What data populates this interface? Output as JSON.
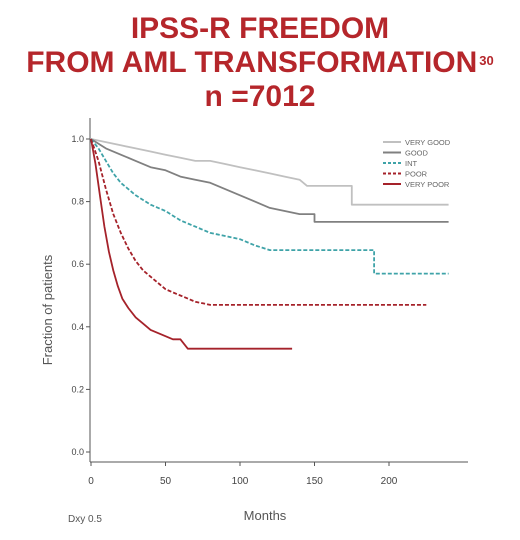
{
  "title": {
    "line1": "IPSS-R FREEDOM",
    "line2": "FROM AML TRANSFORMATION",
    "line2_superscript": "30",
    "line3": "n =7012"
  },
  "footnote": "Dxy 0.5",
  "chart_data": {
    "type": "line",
    "title": "IPSS-R FREEDOM FROM AML TRANSFORMATION",
    "xlabel": "Months",
    "ylabel": "Fraction of patients",
    "xlim": [
      0,
      250
    ],
    "ylim": [
      0,
      1.05
    ],
    "xticks": [
      0,
      50,
      100,
      150,
      200
    ],
    "yticks": [
      0.0,
      0.2,
      0.4,
      0.6,
      0.8,
      1.0
    ],
    "ytick_labels": [
      "0.0",
      "0.2",
      "0.4",
      "0.6",
      "0.8",
      "1.0"
    ],
    "grid": false,
    "legend_position": "top-right",
    "series": [
      {
        "name": "VERY GOOD",
        "color": "#c0c0c0",
        "dash": "solid",
        "points": [
          [
            0,
            1.0
          ],
          [
            10,
            0.99
          ],
          [
            20,
            0.98
          ],
          [
            30,
            0.97
          ],
          [
            40,
            0.96
          ],
          [
            50,
            0.95
          ],
          [
            60,
            0.94
          ],
          [
            70,
            0.93
          ],
          [
            80,
            0.93
          ],
          [
            90,
            0.92
          ],
          [
            100,
            0.91
          ],
          [
            110,
            0.9
          ],
          [
            120,
            0.89
          ],
          [
            130,
            0.88
          ],
          [
            140,
            0.87
          ],
          [
            145,
            0.85
          ],
          [
            175,
            0.85
          ],
          [
            175,
            0.79
          ],
          [
            240,
            0.79
          ]
        ]
      },
      {
        "name": "GOOD",
        "color": "#808080",
        "dash": "solid",
        "points": [
          [
            0,
            1.0
          ],
          [
            10,
            0.97
          ],
          [
            20,
            0.95
          ],
          [
            30,
            0.93
          ],
          [
            40,
            0.91
          ],
          [
            50,
            0.9
          ],
          [
            60,
            0.88
          ],
          [
            70,
            0.87
          ],
          [
            80,
            0.86
          ],
          [
            90,
            0.84
          ],
          [
            100,
            0.82
          ],
          [
            110,
            0.8
          ],
          [
            120,
            0.78
          ],
          [
            130,
            0.77
          ],
          [
            140,
            0.76
          ],
          [
            150,
            0.76
          ],
          [
            150,
            0.735
          ],
          [
            240,
            0.735
          ]
        ]
      },
      {
        "name": "INT",
        "color": "#3fa3a8",
        "dash": "dashed",
        "points": [
          [
            0,
            1.0
          ],
          [
            5,
            0.97
          ],
          [
            10,
            0.93
          ],
          [
            15,
            0.89
          ],
          [
            20,
            0.86
          ],
          [
            25,
            0.84
          ],
          [
            30,
            0.82
          ],
          [
            40,
            0.79
          ],
          [
            50,
            0.77
          ],
          [
            60,
            0.74
          ],
          [
            70,
            0.72
          ],
          [
            80,
            0.7
          ],
          [
            90,
            0.69
          ],
          [
            100,
            0.68
          ],
          [
            110,
            0.66
          ],
          [
            120,
            0.645
          ],
          [
            190,
            0.645
          ],
          [
            190,
            0.57
          ],
          [
            240,
            0.57
          ]
        ]
      },
      {
        "name": "POOR",
        "color": "#a5222a",
        "dash": "dashed",
        "points": [
          [
            0,
            1.0
          ],
          [
            5,
            0.93
          ],
          [
            10,
            0.84
          ],
          [
            15,
            0.76
          ],
          [
            20,
            0.7
          ],
          [
            25,
            0.65
          ],
          [
            30,
            0.61
          ],
          [
            35,
            0.58
          ],
          [
            40,
            0.56
          ],
          [
            45,
            0.54
          ],
          [
            50,
            0.52
          ],
          [
            55,
            0.51
          ],
          [
            60,
            0.5
          ],
          [
            65,
            0.49
          ],
          [
            70,
            0.48
          ],
          [
            75,
            0.475
          ],
          [
            80,
            0.47
          ],
          [
            225,
            0.47
          ]
        ]
      },
      {
        "name": "VERY POOR",
        "color": "#a5222a",
        "dash": "solid",
        "points": [
          [
            0,
            1.0
          ],
          [
            3,
            0.92
          ],
          [
            6,
            0.82
          ],
          [
            9,
            0.72
          ],
          [
            12,
            0.64
          ],
          [
            15,
            0.58
          ],
          [
            18,
            0.53
          ],
          [
            21,
            0.49
          ],
          [
            25,
            0.46
          ],
          [
            30,
            0.43
          ],
          [
            35,
            0.41
          ],
          [
            40,
            0.39
          ],
          [
            50,
            0.37
          ],
          [
            55,
            0.36
          ],
          [
            60,
            0.36
          ],
          [
            65,
            0.33
          ],
          [
            135,
            0.33
          ]
        ]
      }
    ]
  }
}
